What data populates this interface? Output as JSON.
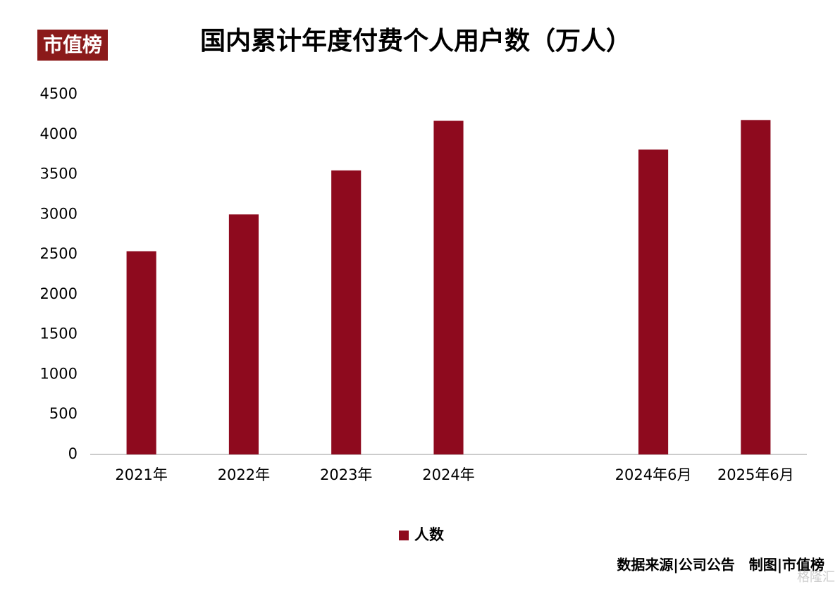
{
  "logo": "市值榜",
  "source": "数据来源|公司公告　制图|市值榜",
  "watermark": "格隆汇",
  "chart_data": {
    "type": "bar",
    "title": "国内累计年度付费个人用户数（万人）",
    "categories": [
      "2021年",
      "2022年",
      "2023年",
      "2024年",
      null,
      "2024年6月",
      "2025年6月"
    ],
    "series": [
      {
        "name": "人数",
        "color": "#8e0a1e",
        "values": [
          2540,
          3000,
          3550,
          4170,
          null,
          3810,
          4180
        ]
      }
    ],
    "ylim": [
      0,
      4500
    ],
    "yticks": [
      0,
      500,
      1000,
      1500,
      2000,
      2500,
      3000,
      3500,
      4000,
      4500
    ],
    "grid": false,
    "legend": "bottom"
  }
}
